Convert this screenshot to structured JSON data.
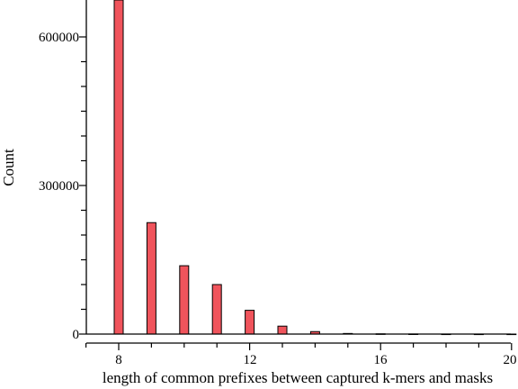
{
  "chart_data": {
    "type": "bar",
    "xlabel": "length of common prefixes between captured k-mers and masks",
    "ylabel": "Count",
    "xlim": [
      7,
      20
    ],
    "ylim": [
      0,
      670000
    ],
    "x_ticks": [
      "8",
      "12",
      "16",
      "20"
    ],
    "y_ticks": [
      "0",
      "300000",
      "600000"
    ],
    "bar_color": "#f0545c",
    "x": [
      8,
      9,
      10,
      11,
      12,
      13,
      14,
      15,
      16,
      17,
      18,
      19,
      20
    ],
    "values": [
      680000,
      225000,
      138000,
      100000,
      48000,
      16000,
      5000,
      1200,
      500,
      200,
      80,
      30,
      10
    ]
  }
}
